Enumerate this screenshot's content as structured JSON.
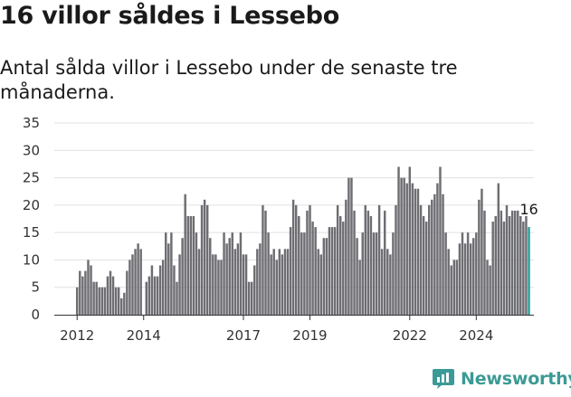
{
  "header": {
    "title": "16 villor såldes i Lessebo",
    "subtitle": "Antal sålda villor i Lessebo under de senaste tre månaderna."
  },
  "brand": {
    "name": "Newsworthy",
    "icon": "newsworthy-logo-icon",
    "color": "#3c9a96"
  },
  "colors": {
    "bar": "#6e6d72",
    "highlight": "#2a9d98",
    "grid": "#e0e0e0",
    "axis": "#333333"
  },
  "chart_data": {
    "type": "bar",
    "title": "16 villor såldes i Lessebo",
    "subtitle": "Antal sålda villor i Lessebo under de senaste tre månaderna.",
    "xlabel": "",
    "ylabel": "",
    "ylim": [
      0,
      35
    ],
    "yticks": [
      0,
      5,
      10,
      15,
      20,
      25,
      30,
      35
    ],
    "xticks": [
      "2012",
      "2014",
      "2017",
      "2019",
      "2022",
      "2024"
    ],
    "grid": true,
    "legend": "none",
    "start_period": "2012-01",
    "period": "monthly, rolling three-month sum",
    "annotation": {
      "label": "16",
      "index": 163
    },
    "values": [
      5,
      8,
      7,
      8,
      10,
      9,
      6,
      6,
      5,
      5,
      5,
      7,
      8,
      7,
      5,
      5,
      3,
      4,
      8,
      10,
      11,
      12,
      13,
      12,
      0,
      6,
      7,
      9,
      7,
      7,
      9,
      10,
      15,
      13,
      15,
      9,
      6,
      11,
      14,
      22,
      18,
      18,
      18,
      15,
      12,
      20,
      21,
      20,
      14,
      11,
      11,
      10,
      10,
      15,
      13,
      14,
      15,
      12,
      13,
      15,
      11,
      11,
      6,
      6,
      9,
      12,
      13,
      20,
      19,
      15,
      11,
      12,
      10,
      12,
      11,
      12,
      12,
      16,
      21,
      20,
      18,
      15,
      15,
      19,
      20,
      17,
      16,
      12,
      11,
      14,
      14,
      16,
      16,
      16,
      20,
      18,
      17,
      21,
      25,
      25,
      19,
      14,
      10,
      15,
      20,
      19,
      18,
      15,
      15,
      20,
      12,
      19,
      12,
      11,
      15,
      20,
      27,
      25,
      25,
      24,
      27,
      24,
      23,
      23,
      20,
      18,
      17,
      20,
      21,
      22,
      24,
      27,
      22,
      15,
      12,
      9,
      10,
      10,
      13,
      15,
      13,
      15,
      13,
      14,
      15,
      21,
      23,
      19,
      10,
      9,
      17,
      18,
      24,
      19,
      17,
      20,
      18,
      19,
      19,
      19,
      18,
      17,
      18,
      16
    ]
  }
}
